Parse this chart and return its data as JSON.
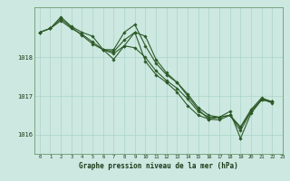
{
  "title": "Graphe pression niveau de la mer (hPa)",
  "background_color": "#cce8e0",
  "grid_color": "#aad4c8",
  "line_color": "#2d5a27",
  "marker_color": "#2d5a27",
  "xlim": [
    -0.5,
    23
  ],
  "ylim": [
    1015.5,
    1019.3
  ],
  "yticks": [
    1016,
    1017,
    1018
  ],
  "xticks": [
    0,
    1,
    2,
    3,
    4,
    5,
    6,
    7,
    8,
    9,
    10,
    11,
    12,
    13,
    14,
    15,
    16,
    17,
    18,
    19,
    20,
    21,
    22,
    23
  ],
  "series2": {
    "line0_x": [
      0,
      1,
      2,
      3,
      4,
      5,
      6,
      7,
      8,
      9,
      10,
      11,
      12,
      13,
      14,
      15,
      16,
      17,
      18,
      19,
      20,
      21,
      22
    ],
    "line0_y": [
      1018.65,
      1018.75,
      1019.05,
      1018.8,
      1018.65,
      1018.55,
      1018.2,
      1018.2,
      1018.65,
      1018.85,
      1018.3,
      1017.85,
      1017.55,
      1017.35,
      1017.05,
      1016.7,
      1016.5,
      1016.45,
      1016.6,
      1015.9,
      1016.55,
      1016.9,
      1016.85
    ],
    "line1_x": [
      0,
      1,
      2,
      3,
      4,
      5,
      6,
      7,
      8,
      9,
      10,
      11,
      12,
      13,
      14,
      15,
      16,
      17,
      18,
      19,
      20,
      21,
      22
    ],
    "line1_y": [
      1018.65,
      1018.75,
      1018.95,
      1018.75,
      1018.6,
      1018.4,
      1018.2,
      1018.15,
      1018.45,
      1018.65,
      1017.9,
      1017.55,
      1017.35,
      1017.1,
      1016.75,
      1016.5,
      1016.4,
      1016.45,
      1016.5,
      1016.1,
      1016.6,
      1016.9,
      1016.85
    ],
    "line2_x": [
      0,
      1,
      2,
      3,
      4,
      5,
      6,
      7,
      8,
      9,
      10,
      11,
      12,
      13,
      14,
      15,
      16,
      17,
      18,
      19,
      20,
      21,
      22
    ],
    "line2_y": [
      1018.65,
      1018.75,
      1019.0,
      1018.78,
      1018.57,
      1018.35,
      1018.2,
      1018.1,
      1018.3,
      1018.25,
      1018.0,
      1017.65,
      1017.4,
      1017.2,
      1016.92,
      1016.6,
      1016.45,
      1016.45,
      1016.5,
      1016.2,
      1016.65,
      1016.95,
      1016.85
    ],
    "line3_x": [
      6,
      7,
      8,
      9,
      10,
      11,
      12,
      13,
      14,
      15,
      16,
      17,
      18,
      19,
      20,
      21,
      22
    ],
    "line3_y": [
      1018.2,
      1017.95,
      1018.3,
      1018.65,
      1018.55,
      1017.95,
      1017.6,
      1017.35,
      1017.0,
      1016.65,
      1016.4,
      1016.38,
      1016.5,
      1016.18,
      1016.6,
      1016.92,
      1016.82
    ]
  }
}
